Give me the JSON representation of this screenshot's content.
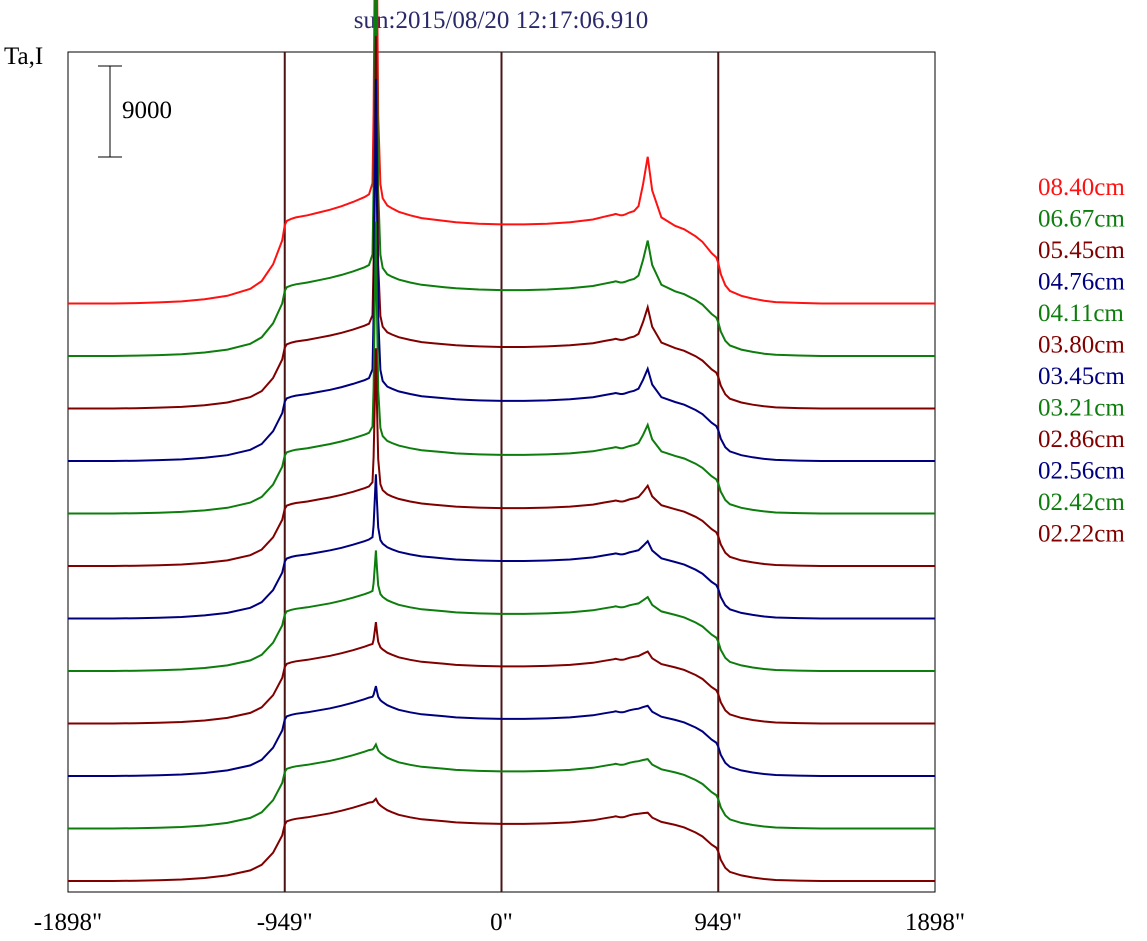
{
  "chart_data": {
    "type": "line",
    "title": "sun:2015/08/20 12:17:06.910",
    "ylabel": "Ta,I",
    "scale_bar_label": "9000",
    "scale_bar_value": 9000,
    "x_ticks": [
      {
        "value": -1898,
        "label": "-1898\""
      },
      {
        "value": -949,
        "label": "-949\""
      },
      {
        "value": 0,
        "label": "0\""
      },
      {
        "value": 949,
        "label": "949\""
      },
      {
        "value": 1898,
        "label": "1898\""
      }
    ],
    "xlim": [
      -1898,
      1898
    ],
    "vertical_markers": [
      -949,
      0,
      949
    ],
    "series_offset": 9000,
    "legend_position": "right",
    "profile_x": [
      -1898,
      -1700,
      -1600,
      -1500,
      -1400,
      -1300,
      -1200,
      -1100,
      -1050,
      -1000,
      -960,
      -949,
      -940,
      -920,
      -900,
      -850,
      -800,
      -750,
      -700,
      -650,
      -600,
      -580,
      -565,
      -560,
      -555,
      -550,
      -545,
      -540,
      -530,
      -520,
      -500,
      -480,
      -450,
      -400,
      -350,
      -300,
      -250,
      -200,
      -150,
      -100,
      0,
      100,
      200,
      300,
      400,
      450,
      490,
      500,
      510,
      520,
      530,
      540,
      560,
      580,
      600,
      620,
      640,
      660,
      700,
      760,
      800,
      850,
      880,
      920,
      940,
      949,
      960,
      980,
      1000,
      1050,
      1100,
      1150,
      1200,
      1300,
      1400,
      1500,
      1600,
      1700,
      1898
    ],
    "disk_base": [
      0,
      0,
      30,
      80,
      150,
      300,
      550,
      1050,
      1600,
      2800,
      4500,
      5600,
      5900,
      6050,
      6150,
      6300,
      6500,
      6700,
      6950,
      7250,
      7600,
      7750,
      7800,
      7800,
      7780,
      7750,
      7700,
      7600,
      7450,
      7300,
      7000,
      6800,
      6550,
      6300,
      6100,
      6000,
      5900,
      5800,
      5750,
      5700,
      5650,
      5650,
      5700,
      5800,
      6000,
      6200,
      6350,
      6400,
      6350,
      6300,
      6300,
      6350,
      6500,
      6600,
      6600,
      6450,
      6200,
      6000,
      5800,
      5550,
      5300,
      4800,
      4400,
      3600,
      3300,
      2900,
      2100,
      1300,
      900,
      550,
      350,
      200,
      100,
      40,
      0,
      0,
      0,
      0,
      0
    ],
    "peak_a": [
      0,
      0,
      0,
      0,
      0,
      0,
      0,
      0,
      0,
      0,
      0,
      0,
      0,
      0,
      0,
      0,
      0,
      0,
      0,
      0,
      0,
      60,
      1100,
      8000,
      22000,
      38000,
      22000,
      8000,
      1500,
      300,
      0,
      0,
      0,
      0,
      0,
      0,
      0,
      0,
      0,
      0,
      0,
      0,
      0,
      0,
      0,
      0,
      0,
      0,
      0,
      0,
      0,
      0,
      0,
      0,
      0,
      0,
      0,
      0,
      0,
      0,
      0,
      0,
      0,
      0,
      0,
      0,
      0,
      0,
      0,
      0,
      0,
      0,
      0,
      0,
      0,
      0,
      0,
      0,
      0
    ],
    "peak_b": [
      0,
      0,
      0,
      0,
      0,
      0,
      0,
      0,
      0,
      0,
      0,
      0,
      0,
      0,
      0,
      0,
      0,
      0,
      0,
      0,
      0,
      0,
      0,
      0,
      0,
      0,
      0,
      0,
      0,
      0,
      0,
      0,
      0,
      0,
      0,
      0,
      0,
      0,
      0,
      0,
      0,
      0,
      0,
      0,
      0,
      0,
      0,
      0,
      0,
      0,
      0,
      0,
      0,
      0,
      300,
      1800,
      3700,
      1800,
      300,
      0,
      0,
      0,
      0,
      0,
      0,
      0,
      0,
      0,
      0,
      0,
      0,
      0,
      0,
      0,
      0,
      0,
      0,
      0,
      0
    ],
    "series": [
      {
        "name": "08.40cm",
        "color": "#ff1111",
        "amp_a": 1.0,
        "amp_b": 1.6,
        "base_shift": 3000
      },
      {
        "name": "06.67cm",
        "color": "#0d7d0d",
        "amp_a": 0.95,
        "amp_b": 1.15,
        "base_shift": 1200
      },
      {
        "name": "05.45cm",
        "color": "#800000",
        "amp_a": 0.75,
        "amp_b": 0.9,
        "base_shift": 600
      },
      {
        "name": "04.76cm",
        "color": "#00007f",
        "amp_a": 0.78,
        "amp_b": 0.7,
        "base_shift": 400
      },
      {
        "name": "04.11cm",
        "color": "#0d7d0d",
        "amp_a": 0.55,
        "amp_b": 0.65,
        "base_shift": 200
      },
      {
        "name": "03.80cm",
        "color": "#800000",
        "amp_a": 0.36,
        "amp_b": 0.45,
        "base_shift": 100
      },
      {
        "name": "03.45cm",
        "color": "#00007f",
        "amp_a": 0.17,
        "amp_b": 0.38,
        "base_shift": 50
      },
      {
        "name": "03.21cm",
        "color": "#0d7d0d",
        "amp_a": 0.11,
        "amp_b": 0.3,
        "base_shift": 0
      },
      {
        "name": "02.86cm",
        "color": "#800000",
        "amp_a": 0.06,
        "amp_b": 0.25,
        "base_shift": 0
      },
      {
        "name": "02.56cm",
        "color": "#00007f",
        "amp_a": 0.03,
        "amp_b": 0.2,
        "base_shift": 0
      },
      {
        "name": "02.42cm",
        "color": "#0d7d0d",
        "amp_a": 0.015,
        "amp_b": 0.18,
        "base_shift": 0
      },
      {
        "name": "02.22cm",
        "color": "#800000",
        "amp_a": 0.01,
        "amp_b": 0.15,
        "base_shift": 0
      }
    ]
  }
}
